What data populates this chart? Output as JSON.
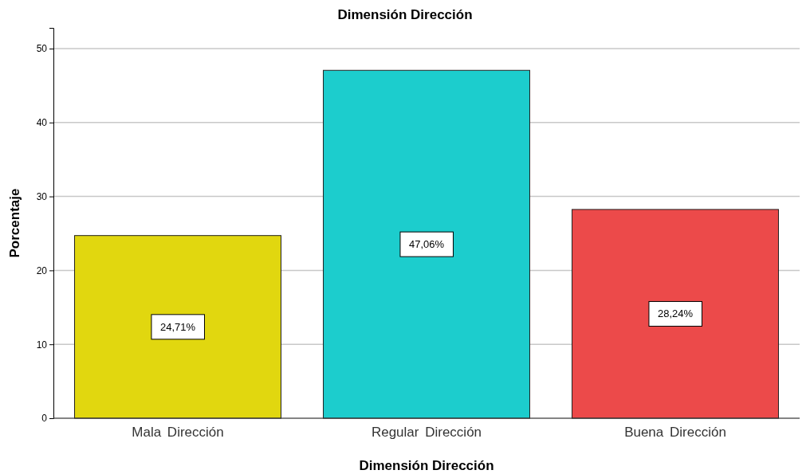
{
  "chart_data": {
    "type": "bar",
    "title": "Dimensión Dirección",
    "xlabel": "Dimensión Dirección",
    "ylabel": "Porcentaje",
    "categories": [
      "Mala Dirección",
      "Regular Dirección",
      "Buena Dirección"
    ],
    "values": [
      24.71,
      47.06,
      28.24
    ],
    "colors": [
      "#e1d70f",
      "#1ccdcd",
      "#ec4a4a"
    ],
    "value_labels": [
      "24,71%",
      "47,06%",
      "28,24%"
    ],
    "ylim": [
      0,
      52.8
    ],
    "yticks": [
      0,
      10,
      20,
      30,
      40,
      50
    ],
    "grid": "y"
  }
}
